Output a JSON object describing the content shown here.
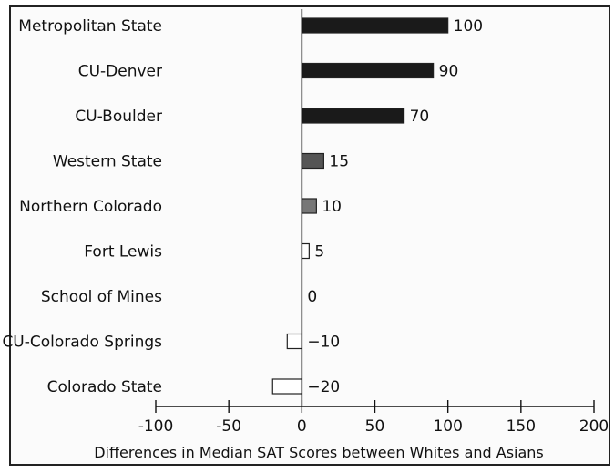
{
  "chart_data": {
    "type": "bar",
    "orientation": "horizontal",
    "categories": [
      "Metropolitan State",
      "CU-Denver",
      "CU-Boulder",
      "Western State",
      "Northern Colorado",
      "Fort Lewis",
      "School of Mines",
      "CU-Colorado Springs",
      "Colorado State"
    ],
    "values": [
      100,
      90,
      70,
      15,
      10,
      5,
      0,
      -10,
      -20
    ],
    "value_labels": [
      "100",
      "90",
      "70",
      "15",
      "10",
      "5",
      "0",
      "−10",
      "−20"
    ],
    "bar_fills": [
      "#1a1a1a",
      "#1a1a1a",
      "#1a1a1a",
      "#555555",
      "#777777",
      "#ffffff",
      "#ffffff",
      "#ffffff",
      "#ffffff"
    ],
    "xlabel": "Differences in Median SAT Scores between Whites and Asians",
    "ylabel": "",
    "title": "",
    "xlim": [
      -100,
      200
    ],
    "xticks": [
      -100,
      -50,
      0,
      50,
      100,
      150,
      200
    ],
    "xtick_labels": [
      "-100",
      "-50",
      "0",
      "50",
      "100",
      "150",
      "200"
    ],
    "grid": false,
    "legend": "none"
  }
}
